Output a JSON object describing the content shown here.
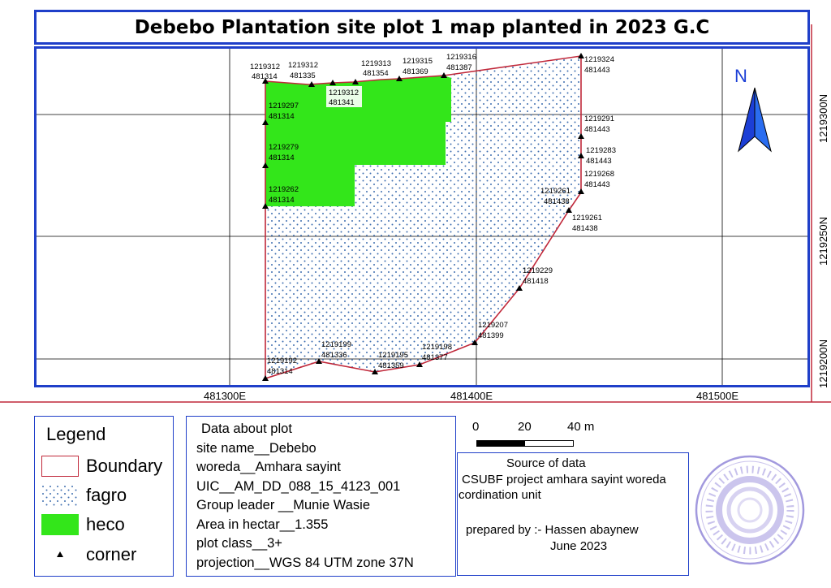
{
  "title": "Debebo Plantation site plot 1 map planted in 2023 G.C",
  "map": {
    "north_label": "N",
    "grid_x_labels": [
      "481300E",
      "481400E",
      "481500E"
    ],
    "grid_y_labels": [
      "1219300N",
      "1219250N",
      "1219200N"
    ],
    "corners": [
      {
        "n": "1219312",
        "e": "481314"
      },
      {
        "n": "1219312",
        "e": "481335"
      },
      {
        "n": "1219312",
        "e": "481341"
      },
      {
        "n": "1219313",
        "e": "481354"
      },
      {
        "n": "1219315",
        "e": "481369"
      },
      {
        "n": "1219316",
        "e": "481387"
      },
      {
        "n": "1219324",
        "e": "481443"
      },
      {
        "n": "1219291",
        "e": "481443"
      },
      {
        "n": "1219283",
        "e": "481443"
      },
      {
        "n": "1219268",
        "e": "481443"
      },
      {
        "n": "1219261",
        "e": "481438"
      },
      {
        "n": "1219261",
        "e": "481438"
      },
      {
        "n": "1219229",
        "e": "481418"
      },
      {
        "n": "1219207",
        "e": "481399"
      },
      {
        "n": "1219198",
        "e": "481377"
      },
      {
        "n": "1219195",
        "e": "481359"
      },
      {
        "n": "1219199",
        "e": "481336"
      },
      {
        "n": "1219192",
        "e": "481314"
      },
      {
        "n": "1219262",
        "e": "481314"
      },
      {
        "n": "1219279",
        "e": "481314"
      },
      {
        "n": "1219297",
        "e": "481314"
      }
    ],
    "colors": {
      "boundary": "#c0283a",
      "heco": "#33e61a",
      "fagro_dot": "#3f6fb0",
      "frame": "#1f3fc9",
      "north_arrow": "#1c3fd6"
    }
  },
  "legend": {
    "title": "Legend",
    "items": [
      {
        "label": "Boundary",
        "symbol": "boundary-swatch"
      },
      {
        "label": "fagro",
        "symbol": "dotted-swatch"
      },
      {
        "label": "heco",
        "symbol": "green-swatch"
      },
      {
        "label": "corner",
        "symbol": "triangle-marker"
      }
    ]
  },
  "plot_info": {
    "heading": "Data about plot",
    "site_name": "site name__Debebo",
    "woreda": "woreda__Amhara sayint",
    "uic": "UIC__AM_DD_088_15_4123_001",
    "group_leader": "Group leader __Munie Wasie",
    "area": "Area in hectar__1.355",
    "plot_class": "plot class__3+",
    "projection": "projection__WGS 84 UTM zone 37N"
  },
  "scale_bar": {
    "labels": [
      "0",
      "20",
      "40 m"
    ]
  },
  "source": {
    "heading": "Source of data",
    "line1": "CSUBF project amhara sayint woreda",
    "line2": "cordination unit",
    "prepared_by": "prepared by :- Hassen abaynew",
    "date": "June 2023"
  },
  "stamp": {
    "description_icon": "official-seal"
  }
}
